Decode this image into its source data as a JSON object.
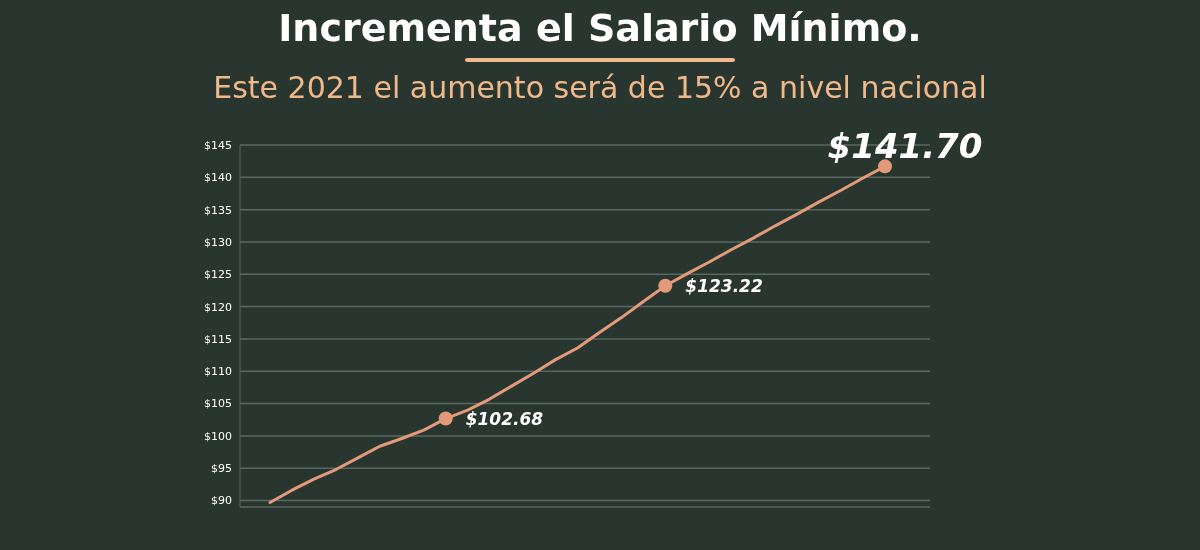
{
  "chart_data": {
    "type": "line",
    "title": "Incrementa el Salario Mínimo.",
    "subtitle": "Este 2021 el aumento será de 15% a nivel nacional",
    "categories": [
      null,
      null,
      null,
      null,
      null,
      null,
      null,
      null,
      null,
      null,
      null,
      null,
      null,
      null,
      null,
      null,
      null,
      null,
      null,
      null,
      null,
      null,
      null,
      null,
      null,
      null,
      null,
      null,
      null
    ],
    "series": [
      {
        "color": "#e39a7a",
        "values": [
          89.7,
          91.6,
          93.3,
          94.8,
          96.6,
          98.4,
          99.6,
          100.9,
          102.68,
          104.0,
          105.7,
          107.7,
          109.7,
          111.8,
          113.6,
          116.0,
          118.3,
          120.8,
          123.22,
          125.1,
          126.9,
          128.8,
          130.6,
          132.5,
          134.3,
          136.2,
          138.0,
          139.9,
          141.7
        ],
        "value_labels": [
          null,
          null,
          null,
          null,
          null,
          null,
          null,
          null,
          "$102.68",
          null,
          null,
          null,
          null,
          null,
          null,
          null,
          null,
          null,
          "$123.22",
          null,
          null,
          null,
          null,
          null,
          null,
          null,
          null,
          null,
          "$141.70"
        ]
      }
    ],
    "ylim": [
      89,
      145
    ],
    "yticks": [
      {
        "value": 90,
        "label": "$90"
      },
      {
        "value": 95,
        "label": "$95"
      },
      {
        "value": 100,
        "label": "$100"
      },
      {
        "value": 105,
        "label": "$105"
      },
      {
        "value": 110,
        "label": "$110"
      },
      {
        "value": 115,
        "label": "$115"
      },
      {
        "value": 120,
        "label": "$120"
      },
      {
        "value": 125,
        "label": "$125"
      },
      {
        "value": 130,
        "label": "$130"
      },
      {
        "value": 135,
        "label": "$135"
      },
      {
        "value": 140,
        "label": "$140"
      },
      {
        "value": 145,
        "label": "$145"
      }
    ],
    "grid": "y",
    "tick_labels": "y",
    "line_style": "solid"
  }
}
